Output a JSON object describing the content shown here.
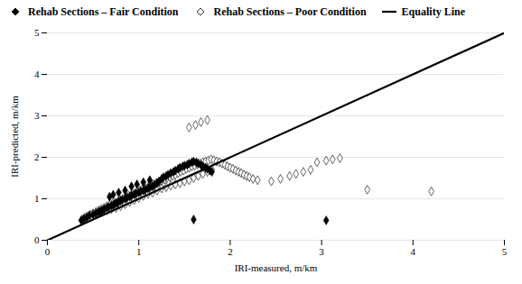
{
  "chart_data": {
    "type": "scatter",
    "xlabel": "IRI-measured, m/km",
    "ylabel": "IRI-predicted, m/km",
    "xlim": [
      0,
      5
    ],
    "ylim": [
      0,
      5
    ],
    "xticks": [
      0,
      1,
      2,
      3,
      4,
      5
    ],
    "yticks": [
      0,
      1,
      2,
      3,
      4,
      5
    ],
    "grid": "y",
    "legend": "upper left",
    "series": [
      {
        "name": "Rehab Sections – Fair Condition",
        "type": "scatter",
        "marker": "diamond",
        "color": "black",
        "x": [
          0.37,
          0.4,
          0.43,
          0.46,
          0.5,
          0.53,
          0.56,
          0.58,
          0.6,
          0.62,
          0.65,
          0.67,
          0.7,
          0.72,
          0.74,
          0.76,
          0.78,
          0.8,
          0.82,
          0.85,
          0.87,
          0.9,
          0.92,
          0.95,
          0.97,
          1.0,
          1.02,
          1.05,
          1.07,
          1.1,
          1.12,
          1.15,
          1.17,
          1.2,
          1.22,
          1.25,
          1.27,
          1.3,
          1.32,
          1.35,
          1.38,
          1.4,
          1.43,
          1.45,
          1.48,
          1.5,
          1.53,
          1.55,
          1.58,
          1.6,
          1.63,
          1.65,
          1.68,
          1.7,
          1.73,
          1.75,
          1.78,
          1.8,
          0.68,
          0.72,
          0.78,
          0.85,
          0.92,
          0.98,
          1.05,
          1.12,
          1.6,
          3.05
        ],
        "values": [
          0.48,
          0.52,
          0.55,
          0.6,
          0.62,
          0.65,
          0.68,
          0.7,
          0.72,
          0.75,
          0.78,
          0.8,
          0.83,
          0.85,
          0.88,
          0.9,
          0.93,
          0.95,
          0.98,
          1.0,
          1.03,
          1.05,
          1.08,
          1.1,
          1.13,
          1.15,
          1.18,
          1.2,
          1.22,
          1.25,
          1.28,
          1.3,
          1.33,
          1.38,
          1.42,
          1.48,
          1.52,
          1.55,
          1.58,
          1.62,
          1.65,
          1.68,
          1.72,
          1.75,
          1.78,
          1.8,
          1.82,
          1.85,
          1.88,
          1.9,
          1.88,
          1.85,
          1.82,
          1.78,
          1.75,
          1.72,
          1.68,
          1.65,
          1.05,
          1.1,
          1.15,
          1.2,
          1.3,
          1.35,
          1.4,
          1.45,
          0.5,
          0.48
        ]
      },
      {
        "name": "Rehab Sections – Poor Condition",
        "type": "scatter",
        "marker": "diamond",
        "color": "white",
        "x": [
          0.38,
          0.41,
          0.44,
          0.47,
          0.5,
          0.53,
          0.56,
          0.59,
          0.62,
          0.65,
          0.68,
          0.71,
          0.74,
          0.77,
          0.8,
          0.83,
          0.86,
          0.89,
          0.92,
          0.95,
          0.98,
          1.01,
          1.04,
          1.07,
          1.1,
          1.13,
          1.16,
          1.19,
          1.22,
          1.25,
          1.28,
          1.31,
          1.34,
          1.37,
          1.4,
          1.43,
          1.46,
          1.49,
          1.52,
          1.55,
          1.58,
          1.61,
          1.64,
          1.67,
          1.7,
          1.73,
          1.76,
          1.79,
          1.82,
          1.85,
          1.88,
          1.91,
          1.94,
          1.97,
          2.0,
          2.03,
          2.06,
          2.09,
          2.12,
          2.15,
          2.18,
          2.21,
          2.25,
          2.3,
          0.55,
          0.6,
          0.65,
          0.7,
          0.75,
          0.8,
          0.85,
          0.9,
          0.95,
          1.0,
          1.05,
          1.1,
          1.15,
          1.2,
          1.25,
          1.3,
          1.35,
          1.4,
          1.45,
          1.5,
          1.55,
          1.6,
          1.65,
          1.7,
          1.75,
          1.8,
          1.55,
          1.62,
          1.68,
          1.75,
          2.45,
          2.55,
          2.65,
          2.72,
          2.8,
          2.88,
          2.95,
          3.05,
          3.12,
          3.2,
          3.5,
          4.2
        ],
        "values": [
          0.5,
          0.55,
          0.58,
          0.62,
          0.65,
          0.68,
          0.72,
          0.75,
          0.78,
          0.82,
          0.85,
          0.88,
          0.9,
          0.93,
          0.97,
          1.0,
          1.03,
          1.07,
          1.1,
          1.13,
          1.17,
          1.2,
          1.23,
          1.25,
          1.28,
          1.32,
          1.35,
          1.38,
          1.4,
          1.43,
          1.47,
          1.5,
          1.53,
          1.55,
          1.58,
          1.62,
          1.65,
          1.68,
          1.72,
          1.75,
          1.78,
          1.8,
          1.83,
          1.85,
          1.88,
          1.9,
          1.92,
          1.95,
          1.93,
          1.9,
          1.88,
          1.85,
          1.82,
          1.78,
          1.75,
          1.72,
          1.68,
          1.65,
          1.62,
          1.58,
          1.55,
          1.52,
          1.48,
          1.45,
          0.65,
          0.68,
          0.72,
          0.75,
          0.78,
          0.82,
          0.87,
          0.92,
          0.97,
          1.02,
          1.07,
          1.12,
          1.15,
          1.2,
          1.25,
          1.28,
          1.32,
          1.35,
          1.38,
          1.42,
          1.45,
          1.5,
          1.55,
          1.6,
          1.65,
          1.7,
          2.72,
          2.78,
          2.85,
          2.9,
          1.42,
          1.48,
          1.55,
          1.6,
          1.65,
          1.7,
          1.88,
          1.92,
          1.95,
          1.98,
          1.22,
          1.18
        ]
      },
      {
        "name": "Equality Line",
        "type": "line",
        "line_style": "solid",
        "color": "black",
        "x": [
          0,
          5
        ],
        "values": [
          0,
          5
        ]
      }
    ]
  }
}
